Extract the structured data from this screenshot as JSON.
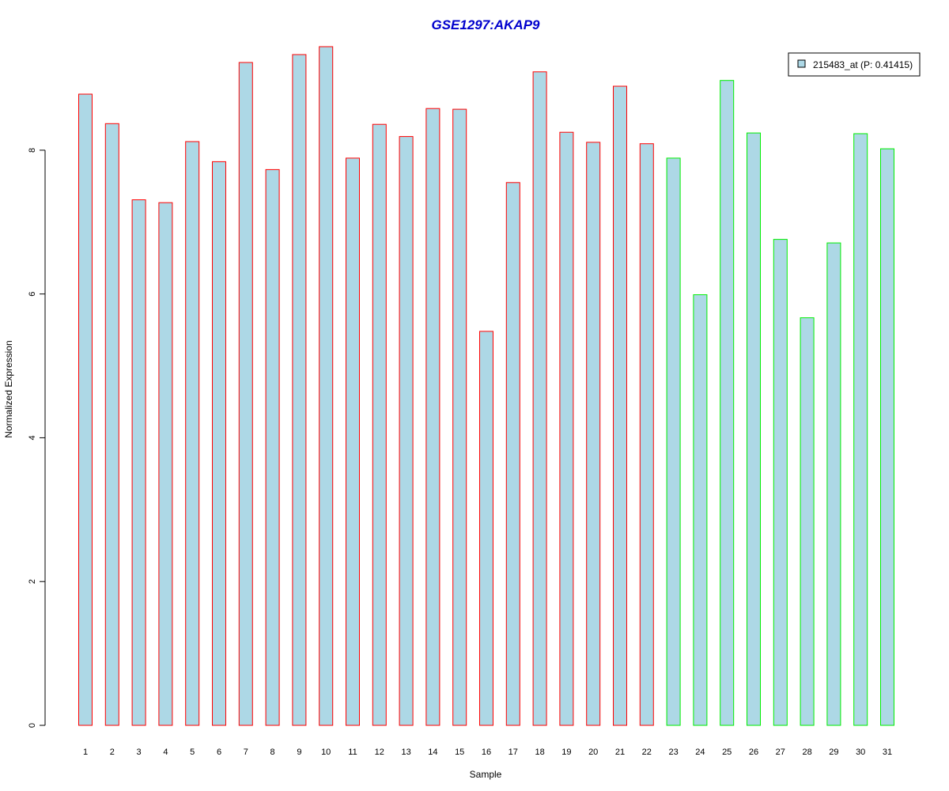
{
  "chart_data": {
    "type": "bar",
    "title": "GSE1297:AKAP9",
    "xlabel": "Sample",
    "ylabel": "Normalized Expression",
    "categories": [
      "1",
      "2",
      "3",
      "4",
      "5",
      "6",
      "7",
      "8",
      "9",
      "10",
      "11",
      "12",
      "13",
      "14",
      "15",
      "16",
      "17",
      "18",
      "19",
      "20",
      "21",
      "22",
      "23",
      "24",
      "25",
      "26",
      "27",
      "28",
      "29",
      "30",
      "31"
    ],
    "series": [
      {
        "name": "215483_at (P: 0.41415)",
        "values": [
          8.78,
          8.37,
          7.31,
          7.27,
          8.12,
          7.84,
          9.22,
          7.73,
          9.33,
          9.44,
          7.89,
          8.36,
          8.19,
          8.58,
          8.57,
          5.48,
          7.55,
          9.09,
          8.25,
          8.11,
          8.89,
          8.09,
          7.89,
          5.99,
          8.97,
          8.24,
          6.76,
          5.67,
          6.71,
          8.23,
          8.02
        ]
      }
    ],
    "groups": [
      {
        "from": 1,
        "to": 22,
        "border_color": "#ff0000"
      },
      {
        "from": 23,
        "to": 31,
        "border_color": "#00ee00"
      }
    ],
    "ylim": [
      0,
      9.44
    ],
    "yticks": [
      0,
      2,
      4,
      6,
      8
    ],
    "legend_position": "top-right",
    "grid": false
  },
  "colors": {
    "title": "#0000cd",
    "bar_fill": "#add8e6",
    "group1_border": "#ff0000",
    "group2_border": "#00ee00",
    "axis": "#000000"
  }
}
